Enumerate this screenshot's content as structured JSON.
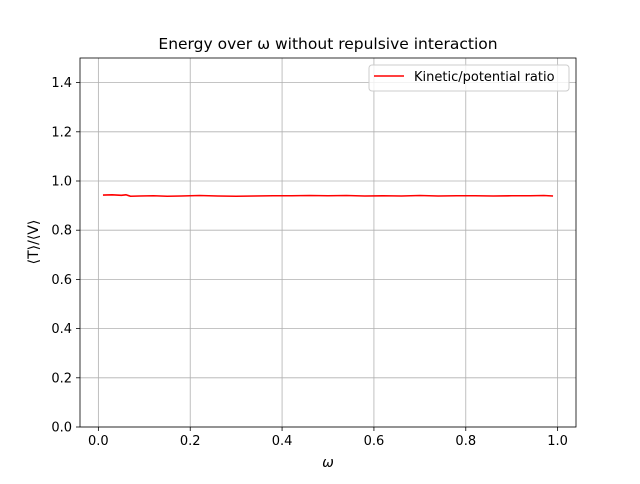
{
  "chart_data": {
    "type": "line",
    "title": "Energy over ω without repulsive interaction",
    "xlabel": "ω",
    "ylabel": "⟨T⟩/⟨V⟩",
    "xlim": [
      -0.04,
      1.04
    ],
    "ylim": [
      0.0,
      1.5
    ],
    "xticks": [
      0.0,
      0.2,
      0.4,
      0.6,
      0.8,
      1.0
    ],
    "xtick_labels": [
      "0.0",
      "0.2",
      "0.4",
      "0.6",
      "0.8",
      "1.0"
    ],
    "yticks": [
      0.0,
      0.2,
      0.4,
      0.6,
      0.8,
      1.0,
      1.2,
      1.4
    ],
    "ytick_labels": [
      "0.0",
      "0.2",
      "0.4",
      "0.6",
      "0.8",
      "1.0",
      "1.2",
      "1.4"
    ],
    "grid": true,
    "legend_position": "top-right",
    "series": [
      {
        "name": "Kinetic/potential ratio",
        "color": "#ff0000",
        "x": [
          0.01,
          0.03,
          0.05,
          0.06,
          0.07,
          0.09,
          0.12,
          0.15,
          0.18,
          0.22,
          0.26,
          0.3,
          0.34,
          0.38,
          0.42,
          0.46,
          0.5,
          0.54,
          0.58,
          0.62,
          0.66,
          0.7,
          0.74,
          0.78,
          0.82,
          0.86,
          0.9,
          0.94,
          0.97,
          0.99
        ],
        "y": [
          0.943,
          0.944,
          0.942,
          0.944,
          0.938,
          0.939,
          0.94,
          0.938,
          0.939,
          0.941,
          0.939,
          0.938,
          0.939,
          0.94,
          0.94,
          0.941,
          0.94,
          0.941,
          0.939,
          0.94,
          0.939,
          0.941,
          0.939,
          0.94,
          0.94,
          0.939,
          0.94,
          0.94,
          0.941,
          0.939
        ]
      }
    ]
  }
}
